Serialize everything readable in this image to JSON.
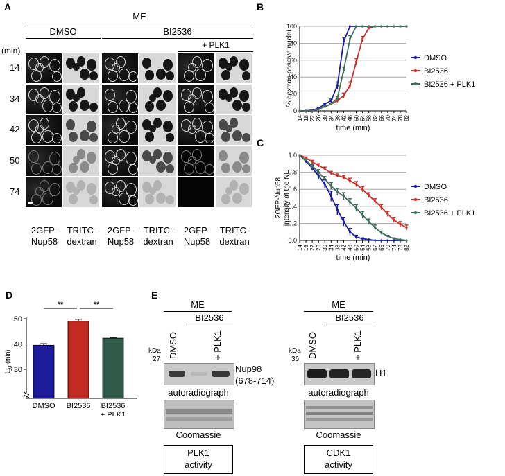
{
  "panels": {
    "a": {
      "letter": "A",
      "header_me": "ME",
      "header_dmso": "DMSO",
      "header_bi": "BI2536",
      "header_plk1": "+ PLK1",
      "time_unit": "(min)",
      "timepoints": [
        "14",
        "34",
        "42",
        "50",
        "74"
      ],
      "col_labels": [
        [
          "2GFP-",
          "Nup58"
        ],
        [
          "TRITC-",
          "dextran"
        ],
        [
          "2GFP-",
          "Nup58"
        ],
        [
          "TRITC-",
          "dextran"
        ],
        [
          "2GFP-",
          "Nup58"
        ],
        [
          "TRITC-",
          "dextran"
        ]
      ]
    },
    "b": {
      "letter": "B"
    },
    "c": {
      "letter": "C"
    },
    "d": {
      "letter": "D"
    },
    "e": {
      "letter": "E",
      "left": {
        "me": "ME",
        "bi": "BI2536",
        "lane1": "DMSO",
        "lane3": "+ PLK1",
        "kda": "kDa",
        "marker": "27",
        "band_label_1": "Nup98",
        "band_label_2": "(678-714)",
        "autorad": "autoradiograph",
        "coomassie": "Coomassie",
        "box_1": "PLK1",
        "box_2": "activity"
      },
      "right": {
        "me": "ME",
        "bi": "BI2536",
        "lane1": "DMSO",
        "lane3": "+ PLK1",
        "kda": "kDa",
        "marker": "36",
        "band_label_1": "H1",
        "autorad": "autoradiograph",
        "coomassie": "Coomassie",
        "box_1": "CDK1",
        "box_2": "activity"
      }
    }
  },
  "chart_data": [
    {
      "id": "B",
      "type": "line",
      "ylabel": "% dextran-positive nuclei",
      "xlabel": "time (min)",
      "x": [
        14,
        18,
        22,
        26,
        30,
        34,
        38,
        42,
        46,
        50,
        54,
        58,
        62,
        66,
        70,
        74,
        78,
        82
      ],
      "ylim": [
        0,
        100
      ],
      "yticks": [
        0,
        20,
        40,
        60,
        80,
        100
      ],
      "grid": true,
      "legend_position": "right",
      "series": [
        {
          "name": "DMSO",
          "color": "#1c1c9a",
          "values": [
            0,
            0,
            1,
            3,
            8,
            12,
            30,
            82,
            100,
            100,
            100,
            100,
            100,
            100,
            100,
            100,
            100,
            100
          ],
          "errors": [
            0,
            0,
            0,
            1,
            1,
            2,
            4,
            5,
            0,
            0,
            0,
            0,
            0,
            0,
            0,
            0,
            0,
            0
          ]
        },
        {
          "name": "BI2536",
          "color": "#c9302c",
          "values": [
            0,
            0,
            0,
            2,
            5,
            8,
            12,
            18,
            30,
            58,
            85,
            98,
            100,
            100,
            100,
            100,
            100,
            100
          ],
          "errors": [
            0,
            0,
            0,
            0,
            1,
            1,
            2,
            3,
            4,
            4,
            3,
            1,
            0,
            0,
            0,
            0,
            0,
            0
          ]
        },
        {
          "name": "BI2536 + PLK1",
          "color": "#3f6e5a",
          "values": [
            0,
            0,
            0,
            2,
            5,
            8,
            15,
            48,
            85,
            100,
            100,
            100,
            100,
            100,
            100,
            100,
            100,
            100
          ],
          "errors": [
            0,
            0,
            0,
            0,
            1,
            1,
            2,
            4,
            4,
            0,
            0,
            0,
            0,
            0,
            0,
            0,
            0,
            0
          ]
        }
      ]
    },
    {
      "id": "C",
      "type": "line",
      "ylabel": "2GFP-Nup58 intensity at the NE",
      "xlabel": "time (min)",
      "x": [
        14,
        18,
        22,
        26,
        30,
        34,
        38,
        42,
        46,
        50,
        54,
        58,
        62,
        66,
        70,
        74,
        78,
        82
      ],
      "ylim": [
        0,
        1.0
      ],
      "yticks": [
        0.0,
        0.2,
        0.4,
        0.6,
        0.8,
        1.0
      ],
      "grid": true,
      "legend_position": "right",
      "series": [
        {
          "name": "DMSO",
          "color": "#1c1c9a",
          "values": [
            1.0,
            0.93,
            0.85,
            0.76,
            0.66,
            0.52,
            0.36,
            0.22,
            0.1,
            0.04,
            0.02,
            0.01,
            0.0,
            0.0,
            0.0,
            0.0,
            0.0,
            0.0
          ],
          "errors": [
            0,
            0.02,
            0.03,
            0.04,
            0.05,
            0.06,
            0.06,
            0.05,
            0.04,
            0.02,
            0.01,
            0,
            0,
            0,
            0,
            0,
            0,
            0
          ]
        },
        {
          "name": "BI2536",
          "color": "#c9302c",
          "values": [
            1.0,
            0.97,
            0.92,
            0.88,
            0.84,
            0.79,
            0.76,
            0.74,
            0.7,
            0.66,
            0.6,
            0.53,
            0.46,
            0.39,
            0.31,
            0.24,
            0.19,
            0.15
          ],
          "errors": [
            0,
            0.01,
            0.02,
            0.02,
            0.02,
            0.02,
            0.02,
            0.02,
            0.03,
            0.03,
            0.03,
            0.03,
            0.03,
            0.03,
            0.03,
            0.03,
            0.03,
            0.03
          ]
        },
        {
          "name": "BI2536 + PLK1",
          "color": "#3f6e5a",
          "values": [
            1.0,
            0.94,
            0.87,
            0.8,
            0.72,
            0.64,
            0.57,
            0.52,
            0.45,
            0.38,
            0.3,
            0.22,
            0.15,
            0.09,
            0.05,
            0.02,
            0.01,
            0.0
          ],
          "errors": [
            0,
            0.01,
            0.02,
            0.03,
            0.03,
            0.04,
            0.04,
            0.04,
            0.04,
            0.04,
            0.04,
            0.03,
            0.03,
            0.02,
            0.01,
            0.01,
            0,
            0
          ]
        }
      ]
    },
    {
      "id": "D",
      "type": "bar",
      "ylabel": "t50 (min)",
      "ylabel_main": "t",
      "ylabel_sub": "50",
      "ylabel_unit": "(min)",
      "categories": [
        "DMSO",
        "BI2536",
        "BI2536\n+ PLK1"
      ],
      "category_lines": [
        [
          "DMSO"
        ],
        [
          "BI2536"
        ],
        [
          "BI2536",
          "+ PLK1"
        ]
      ],
      "values": [
        39.5,
        49.0,
        42.3
      ],
      "errors": [
        0.6,
        0.8,
        0.3
      ],
      "colors": [
        "#1c1c9a",
        "#c22a22",
        "#2f5a4a"
      ],
      "ylim": [
        0,
        50
      ],
      "yticks": [
        30,
        40,
        50
      ],
      "axis_break": true,
      "significance": [
        {
          "from": 0,
          "to": 1,
          "label": "**"
        },
        {
          "from": 1,
          "to": 2,
          "label": "**"
        }
      ]
    }
  ]
}
